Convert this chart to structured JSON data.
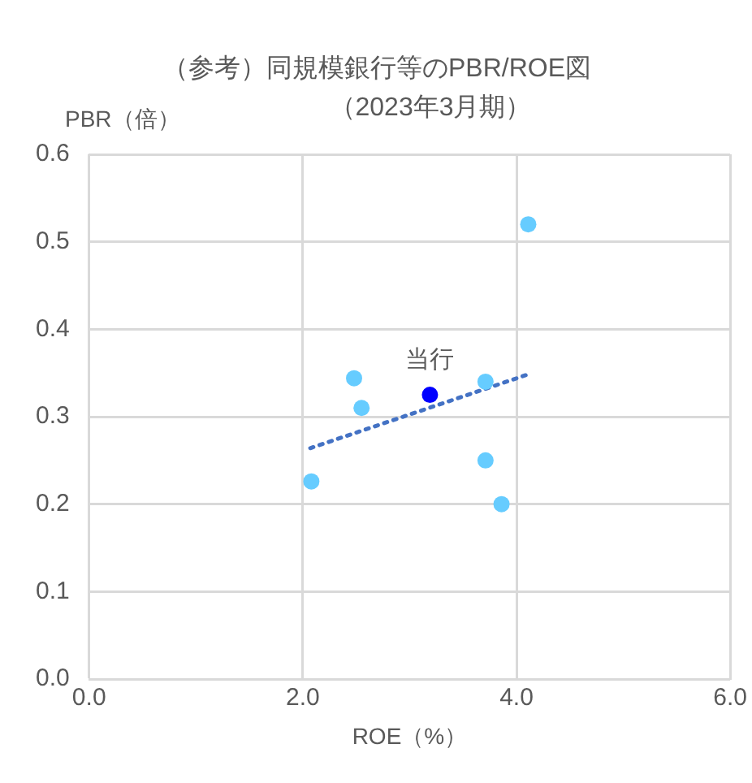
{
  "chart_data": {
    "type": "scatter",
    "title": "（参考）同規模銀行等のPBR/ROE図",
    "subtitle": "（2023年3月期）",
    "xlabel": "ROE（%）",
    "ylabel": "PBR（倍）",
    "xlim": [
      0,
      6
    ],
    "xticks": [
      {
        "value": 0,
        "label": "0.0"
      },
      {
        "value": 2,
        "label": "2.0"
      },
      {
        "value": 4,
        "label": "4.0"
      },
      {
        "value": 6,
        "label": "6.0"
      }
    ],
    "ylim": [
      0,
      0.6
    ],
    "yticks": [
      {
        "value": 0,
        "label": "0.0"
      },
      {
        "value": 0.1,
        "label": "0.1"
      },
      {
        "value": 0.2,
        "label": "0.2"
      },
      {
        "value": 0.3,
        "label": "0.3"
      },
      {
        "value": 0.4,
        "label": "0.4"
      },
      {
        "value": 0.5,
        "label": "0.5"
      },
      {
        "value": 0.6,
        "label": "0.6"
      }
    ],
    "grid": true,
    "legend": false,
    "marker": "circle",
    "series": [
      {
        "type": "scatter",
        "color": "#66ccff",
        "x": [
          2.08,
          2.48,
          2.55,
          3.71,
          3.71,
          3.86,
          4.11
        ],
        "values": [
          0.226,
          0.344,
          0.31,
          0.34,
          0.25,
          0.2,
          0.52
        ]
      },
      {
        "type": "line",
        "color": "#4472c4",
        "line_style": "dotted",
        "marker": "none",
        "x": [
          2.07,
          4.1
        ],
        "values": [
          0.264,
          0.348
        ]
      },
      {
        "type": "scatter",
        "color": "#0000ff",
        "x": [
          3.19
        ],
        "values": [
          0.325
        ]
      }
    ],
    "annotations": [
      {
        "text": "当行",
        "x": 3.19,
        "y": 0.325
      }
    ]
  }
}
